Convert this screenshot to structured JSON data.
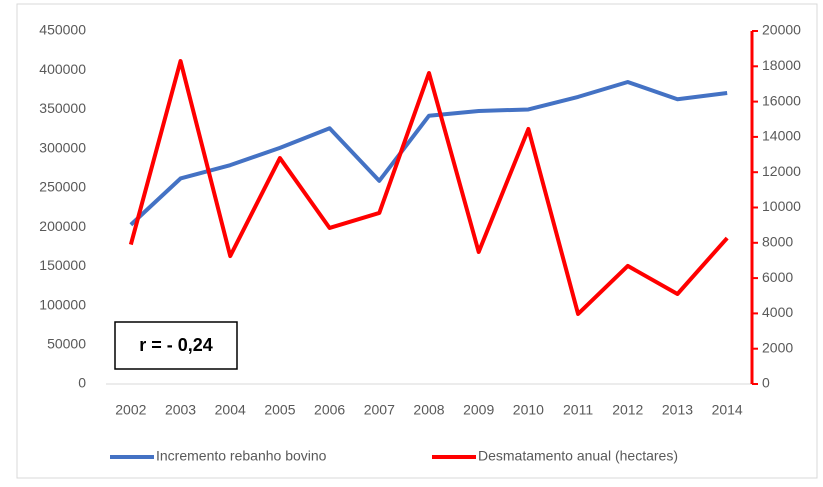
{
  "chart_data": {
    "type": "line",
    "categories": [
      "2002",
      "2003",
      "2004",
      "2005",
      "2006",
      "2007",
      "2008",
      "2009",
      "2010",
      "2011",
      "2012",
      "2013",
      "2014"
    ],
    "series": [
      {
        "name": "Incremento rebanho bovino",
        "color": "#4472c4",
        "values": [
          203000,
          262000,
          279000,
          301000,
          326000,
          259000,
          342000,
          348000,
          350000,
          366000,
          385000,
          363000,
          371000
        ]
      },
      {
        "name": "Desmatamento anual (hectares)",
        "color": "#ff0000",
        "axis": "y2",
        "values": [
          7900,
          18300,
          7250,
          12800,
          8840,
          9690,
          17620,
          7480,
          14450,
          3970,
          6690,
          5100,
          8270
        ]
      }
    ],
    "ylim": [
      0,
      450000
    ],
    "yticks": [
      0,
      50000,
      100000,
      150000,
      200000,
      250000,
      300000,
      350000,
      400000,
      450000
    ],
    "y2lim": [
      0,
      20000
    ],
    "y2ticks": [
      0,
      2000,
      4000,
      6000,
      8000,
      10000,
      12000,
      14000,
      16000,
      18000,
      20000
    ],
    "annotations": [
      "r = - 0,24"
    ]
  }
}
